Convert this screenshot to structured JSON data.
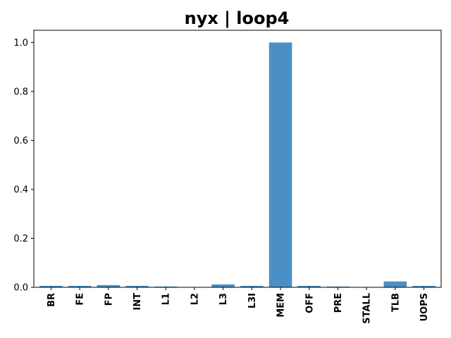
{
  "chart_data": {
    "type": "bar",
    "title": "nyx | loop4",
    "xlabel": "",
    "ylabel": "",
    "categories": [
      "BR",
      "FE",
      "FP",
      "INT",
      "L1",
      "L2",
      "L3",
      "L3I",
      "MEM",
      "OFF",
      "PRE",
      "STALL",
      "TLB",
      "UOPS"
    ],
    "values": [
      0.006,
      0.006,
      0.009,
      0.006,
      0.003,
      0.0,
      0.012,
      0.006,
      1.0,
      0.006,
      0.003,
      0.0,
      0.024,
      0.006
    ],
    "ylim": [
      0,
      1.05
    ],
    "yticks": [
      "0.0",
      "0.2",
      "0.4",
      "0.6",
      "0.8",
      "1.0"
    ],
    "grid": false,
    "bar_color": "#4a90c4",
    "xtick_rotation": -90
  }
}
